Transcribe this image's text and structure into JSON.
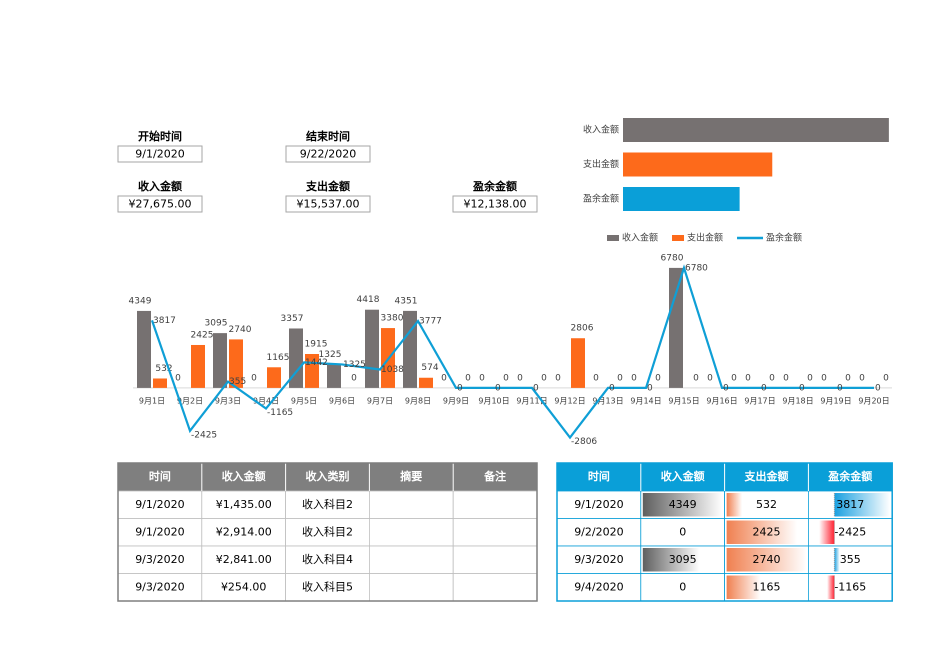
{
  "fields": [
    {
      "label": "开始时间",
      "value": "9/1/2020"
    },
    {
      "label": "结束时间",
      "value": "9/22/2020"
    },
    {
      "label": "收入金额",
      "value": "¥27,675.00"
    },
    {
      "label": "支出金额",
      "value": "¥15,537.00"
    },
    {
      "label": "盈余金额",
      "value": "¥12,138.00"
    }
  ],
  "chart_data": [
    {
      "type": "bar",
      "categories": [
        "9月1日",
        "9月2日",
        "9月3日",
        "9月4日",
        "9月5日",
        "9月6日",
        "9月7日",
        "9月8日",
        "9月9日",
        "9月10日",
        "9月11日",
        "9月12日",
        "9月13日",
        "9月14日",
        "9月15日",
        "9月16日",
        "9月17日",
        "9月18日",
        "9月19日",
        "9月20日"
      ],
      "series": [
        {
          "name": "收入金额",
          "type": "bar",
          "color": "#767171",
          "values": [
            4349,
            0,
            3095,
            0,
            3357,
            1325,
            4418,
            4351,
            0,
            0,
            0,
            0,
            0,
            0,
            6780,
            0,
            0,
            0,
            0,
            0
          ]
        },
        {
          "name": "支出金额",
          "type": "bar",
          "color": "#fd6a1b",
          "values": [
            532,
            2425,
            2740,
            1165,
            1915,
            0,
            3380,
            574,
            0,
            0,
            0,
            2806,
            0,
            0,
            0,
            0,
            0,
            0,
            0,
            0
          ]
        },
        {
          "name": "盈余金额",
          "type": "line",
          "color": "#0f9fd6",
          "values": [
            3817,
            -2425,
            355,
            -1165,
            1442,
            1325,
            1038,
            3777,
            0,
            0,
            0,
            -2806,
            0,
            0,
            6780,
            0,
            0,
            0,
            0,
            0
          ]
        }
      ],
      "ylim": [
        -3000,
        7000
      ],
      "legend": "top-right"
    },
    {
      "type": "bar",
      "orientation": "horizontal",
      "categories": [
        "收入金额",
        "支出金额",
        "盈余金额"
      ],
      "values": [
        27675,
        15537,
        12138
      ],
      "colors": [
        "#767171",
        "#fd6a1b",
        "#0a9fd8"
      ],
      "xlim": [
        0,
        28000
      ]
    }
  ],
  "income_table": {
    "columns": [
      "时间",
      "收入金额",
      "收入类别",
      "摘要",
      "备注"
    ],
    "rows": [
      [
        "9/1/2020",
        "¥1,435.00",
        "收入科目2",
        "",
        ""
      ],
      [
        "9/1/2020",
        "¥2,914.00",
        "收入科目2",
        "",
        ""
      ],
      [
        "9/3/2020",
        "¥2,841.00",
        "收入科目4",
        "",
        ""
      ],
      [
        "9/3/2020",
        "¥254.00",
        "收入科目5",
        "",
        ""
      ]
    ]
  },
  "balance_table": {
    "columns": [
      "时间",
      "收入金额",
      "支出金额",
      "盈余金额"
    ],
    "rows": [
      [
        "9/1/2020",
        4349,
        532,
        3817
      ],
      [
        "9/2/2020",
        0,
        2425,
        -2425
      ],
      [
        "9/3/2020",
        3095,
        2740,
        355
      ],
      [
        "9/4/2020",
        0,
        1165,
        -1165
      ]
    ]
  }
}
